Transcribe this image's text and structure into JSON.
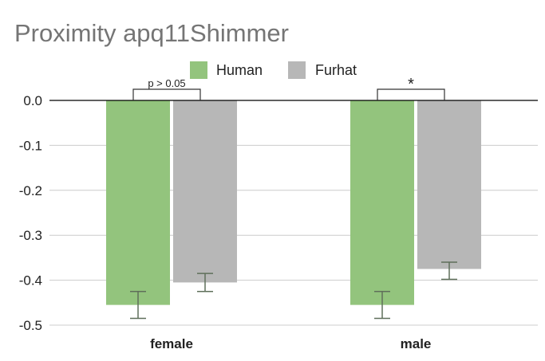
{
  "chart_data": {
    "type": "bar",
    "title": "Proximity apq11Shimmer",
    "xlabel": "",
    "ylabel": "",
    "categories": [
      "female",
      "male"
    ],
    "series": [
      {
        "name": "Human",
        "color": "#93c47d",
        "values": [
          -0.455,
          -0.455
        ],
        "error_low": [
          -0.485,
          -0.485
        ],
        "error_high": [
          -0.425,
          -0.425
        ]
      },
      {
        "name": "Furhat",
        "color": "#b7b7b7",
        "values": [
          -0.405,
          -0.375
        ],
        "error_low": [
          -0.425,
          -0.398
        ],
        "error_high": [
          -0.385,
          -0.36
        ]
      }
    ],
    "ylim": [
      -0.5,
      0.0
    ],
    "yticks": [
      "0.0",
      "-0.1",
      "-0.2",
      "-0.3",
      "-0.4",
      "-0.5"
    ],
    "grid": true,
    "legend_position": "top",
    "annotations": [
      {
        "category": "female",
        "text": "p > 0.05"
      },
      {
        "category": "male",
        "text": "*"
      }
    ]
  }
}
